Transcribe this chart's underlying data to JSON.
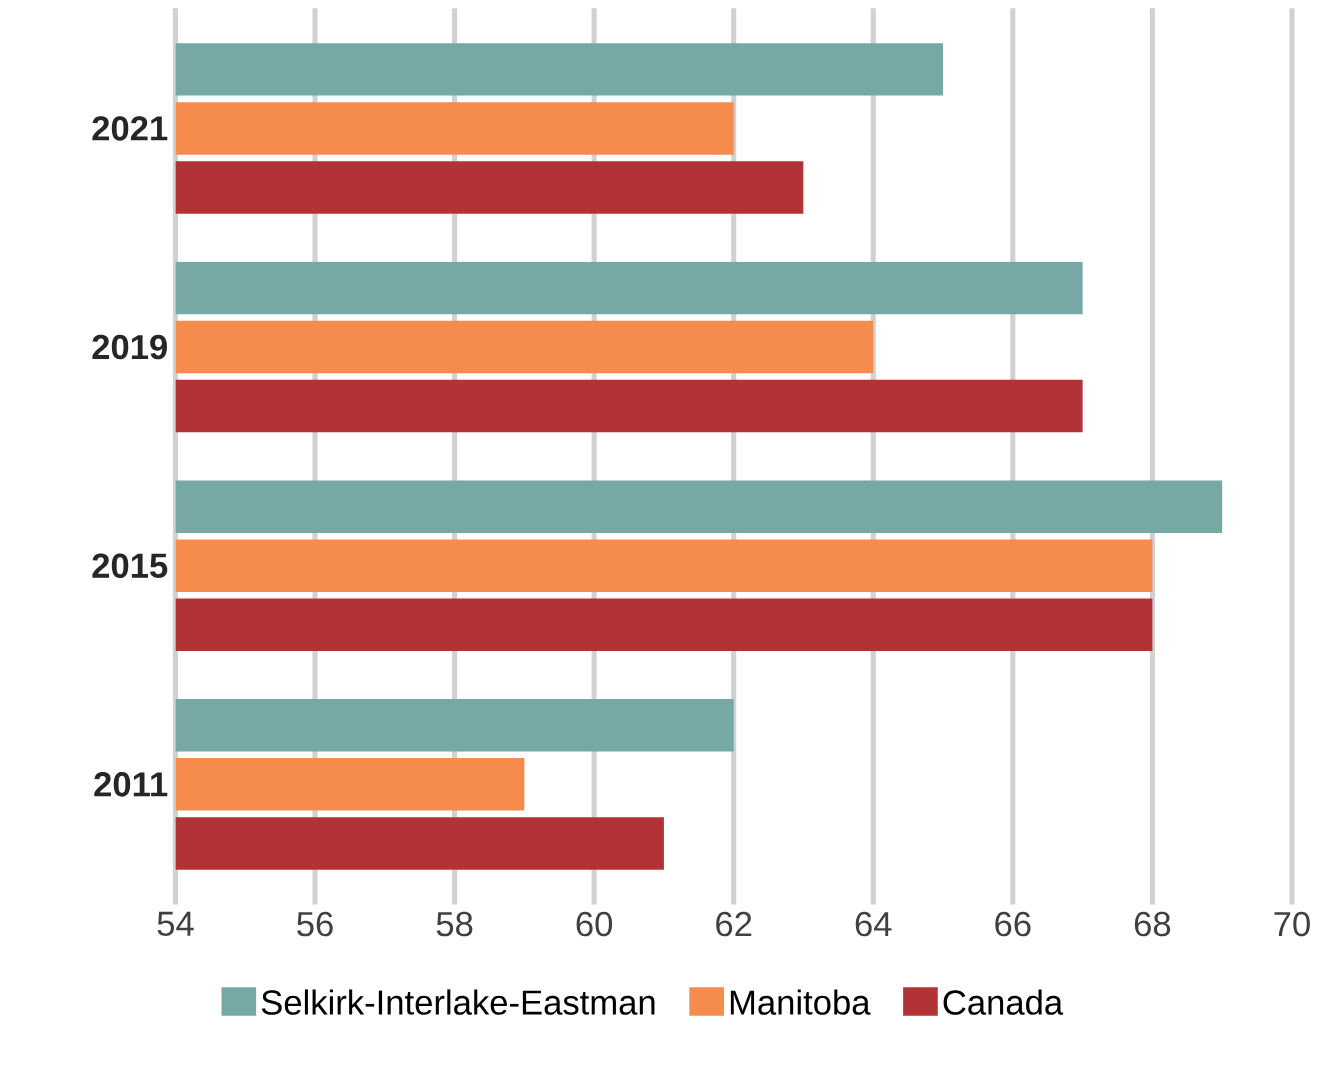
{
  "chart_data": {
    "type": "bar",
    "orientation": "horizontal",
    "categories": [
      "2021",
      "2019",
      "2015",
      "2011"
    ],
    "series": [
      {
        "name": "Selkirk-Interlake-Eastman",
        "color": "#76a8a6",
        "values": [
          65,
          67,
          69,
          62
        ]
      },
      {
        "name": "Manitoba",
        "color": "#f58b4c",
        "values": [
          62,
          64,
          68,
          59
        ]
      },
      {
        "name": "Canada",
        "color": "#b13335",
        "values": [
          63,
          67,
          68,
          61
        ]
      }
    ],
    "xlim": [
      54,
      70
    ],
    "xticks": [
      54,
      56,
      58,
      60,
      62,
      64,
      66,
      68,
      70
    ],
    "grid": "x",
    "legend": "bottom"
  }
}
